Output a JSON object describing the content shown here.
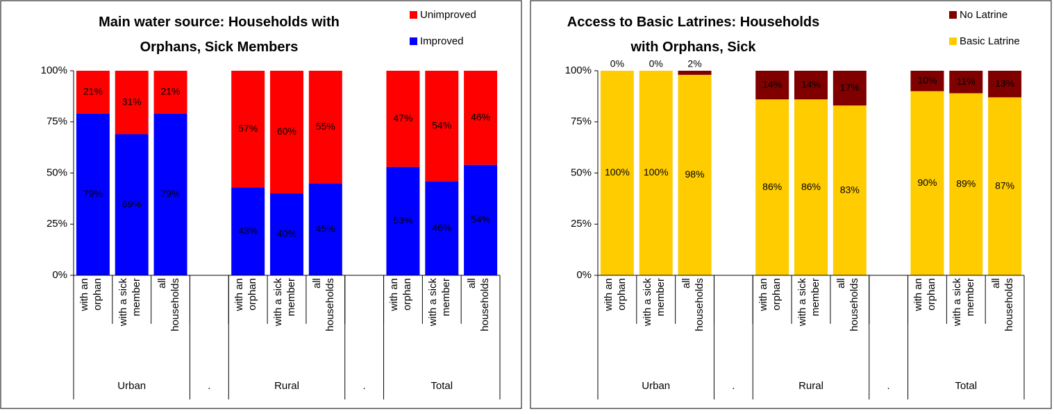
{
  "chart_data": [
    {
      "type": "stacked-bar",
      "title": "Main water source: Households with Orphans, Sick Members",
      "categories": [
        "with an orphan",
        "with a sick member",
        "all households",
        null,
        "with an orphan",
        "with a sick member",
        "all households",
        null,
        "with an orphan",
        "with a sick member",
        "all households"
      ],
      "groups": [
        "Urban",
        ".",
        "Rural",
        ".",
        "Total"
      ],
      "series": [
        {
          "name": "Improved",
          "color": "#0000ff",
          "label_color": "#ffffff",
          "values": [
            79,
            69,
            79,
            null,
            43,
            40,
            45,
            null,
            53,
            46,
            54
          ],
          "value_labels": [
            "79%",
            "69%",
            "79%",
            null,
            "43%",
            "40%",
            "45%",
            null,
            "53%",
            "46%",
            "54%"
          ]
        },
        {
          "name": "Unimproved",
          "color": "#ff0000",
          "label_color": "#222222",
          "values": [
            21,
            31,
            21,
            null,
            57,
            60,
            55,
            null,
            47,
            54,
            46
          ],
          "value_labels": [
            "21%",
            "31%",
            "21%",
            null,
            "57%",
            "60%",
            "55%",
            null,
            "47%",
            "54%",
            "46%"
          ]
        }
      ],
      "ylim": [
        0,
        100
      ],
      "yticks": [
        {
          "value": 0,
          "label": "0%"
        },
        {
          "value": 25,
          "label": "25%"
        },
        {
          "value": 50,
          "label": "50%"
        },
        {
          "value": 75,
          "label": "75%"
        },
        {
          "value": 100,
          "label": "100%"
        }
      ],
      "legend": "top-right"
    },
    {
      "type": "stacked-bar",
      "title": "Access to Basic Latrines: Households with Orphans, Sick",
      "categories": [
        "with an orphan",
        "with a sick member",
        "all households",
        null,
        "with an orphan",
        "with a sick member",
        "all households",
        null,
        "with an orphan",
        "with a sick member",
        "all households"
      ],
      "groups": [
        "Urban",
        ".",
        "Rural",
        ".",
        "Total"
      ],
      "series": [
        {
          "name": "Basic Latrine",
          "color": "#ffcc00",
          "label_color": "#222222",
          "values": [
            100,
            100,
            98,
            null,
            86,
            86,
            83,
            null,
            90,
            89,
            87
          ],
          "value_labels": [
            "100%",
            "100%",
            "98%",
            null,
            "86%",
            "86%",
            "83%",
            null,
            "90%",
            "89%",
            "87%"
          ]
        },
        {
          "name": "No Latrine",
          "color": "#800000",
          "label_color": "#ffffff",
          "values": [
            0,
            0,
            2,
            null,
            14,
            14,
            17,
            null,
            10,
            11,
            13
          ],
          "value_labels": [
            "0%",
            "0%",
            "2%",
            null,
            "14%",
            "14%",
            "17%",
            null,
            "10%",
            "11%",
            "13%"
          ]
        }
      ],
      "ylim": [
        0,
        100
      ],
      "yticks": [
        {
          "value": 0,
          "label": "0%"
        },
        {
          "value": 25,
          "label": "25%"
        },
        {
          "value": 50,
          "label": "50%"
        },
        {
          "value": 75,
          "label": "75%"
        },
        {
          "value": 100,
          "label": "100%"
        }
      ],
      "legend": "top-right"
    }
  ]
}
